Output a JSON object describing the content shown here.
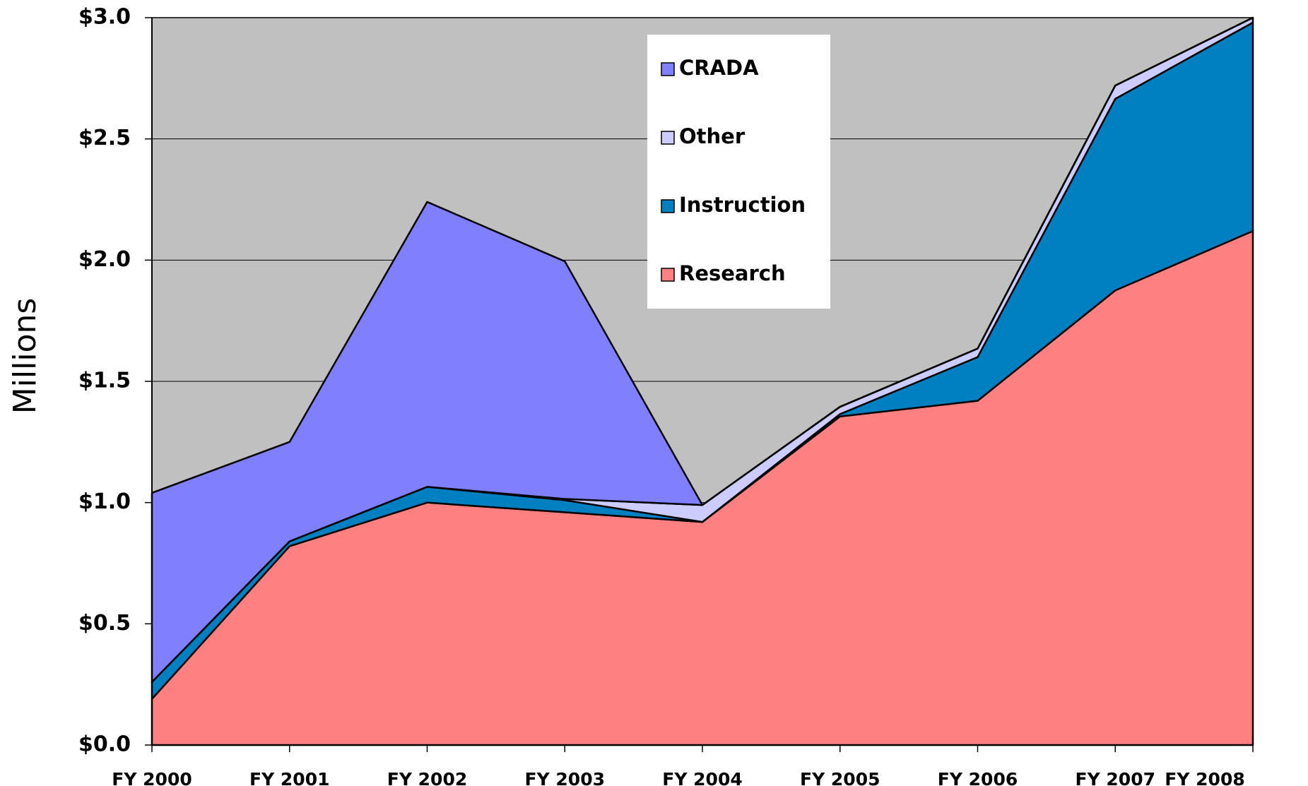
{
  "chart_data": {
    "type": "stacked_area",
    "y_label": "Millions",
    "categories": [
      "FY 2000",
      "FY 2001",
      "FY 2002",
      "FY 2003",
      "FY 2004",
      "FY 2005",
      "FY 2006",
      "FY 2007",
      "FY 2008"
    ],
    "series": [
      {
        "name": "Research",
        "color": "#ff8080",
        "values": [
          0.19,
          0.82,
          1.0,
          0.96,
          0.92,
          1.355,
          1.42,
          1.875,
          2.12
        ]
      },
      {
        "name": "Instruction",
        "color": "#0080c0",
        "values": [
          0.07,
          0.02,
          0.065,
          0.05,
          0,
          0.01,
          0.18,
          0.79,
          0.86
        ]
      },
      {
        "name": "Other",
        "color": "#ccccff",
        "values": [
          0,
          0,
          0,
          0.005,
          0.07,
          0.03,
          0.035,
          0.055,
          0.02
        ]
      },
      {
        "name": "CRADA",
        "color": "#8080ff",
        "values": [
          0.78,
          0.41,
          1.175,
          0.98,
          0,
          0,
          0,
          0,
          0
        ]
      }
    ],
    "ylim": [
      0,
      3.0
    ],
    "yticks": [
      {
        "value": 0,
        "label": "$0.0"
      },
      {
        "value": 0.5,
        "label": "$0.5"
      },
      {
        "value": 1.0,
        "label": "$1.0"
      },
      {
        "value": 1.5,
        "label": "$1.5"
      },
      {
        "value": 2.0,
        "label": "$2.0"
      },
      {
        "value": 2.5,
        "label": "$2.5"
      },
      {
        "value": 3.0,
        "label": "$3.0"
      }
    ],
    "grid": true,
    "plot_background": "#c0c0c0",
    "legend": "top"
  }
}
